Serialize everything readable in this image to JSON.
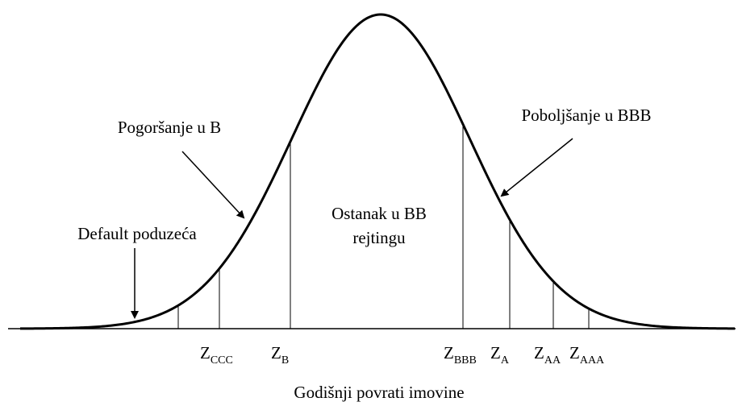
{
  "annotations": {
    "worse": "Pogoršanje u B",
    "better": "Poboljšanje u BBB",
    "default": "Default poduzeća",
    "stay_line1": "Ostanak u BB",
    "stay_line2": "rejtingu"
  },
  "thresholds": [
    {
      "symbol": "Z",
      "subscript": "CCC"
    },
    {
      "symbol": "Z",
      "subscript": "B"
    },
    {
      "symbol": "Z",
      "subscript": "BBB"
    },
    {
      "symbol": "Z",
      "subscript": "A"
    },
    {
      "symbol": "Z",
      "subscript": "AA"
    },
    {
      "symbol": "Z",
      "subscript": "AAA"
    }
  ],
  "x_axis_label": "Godišnji povrati imovine"
}
